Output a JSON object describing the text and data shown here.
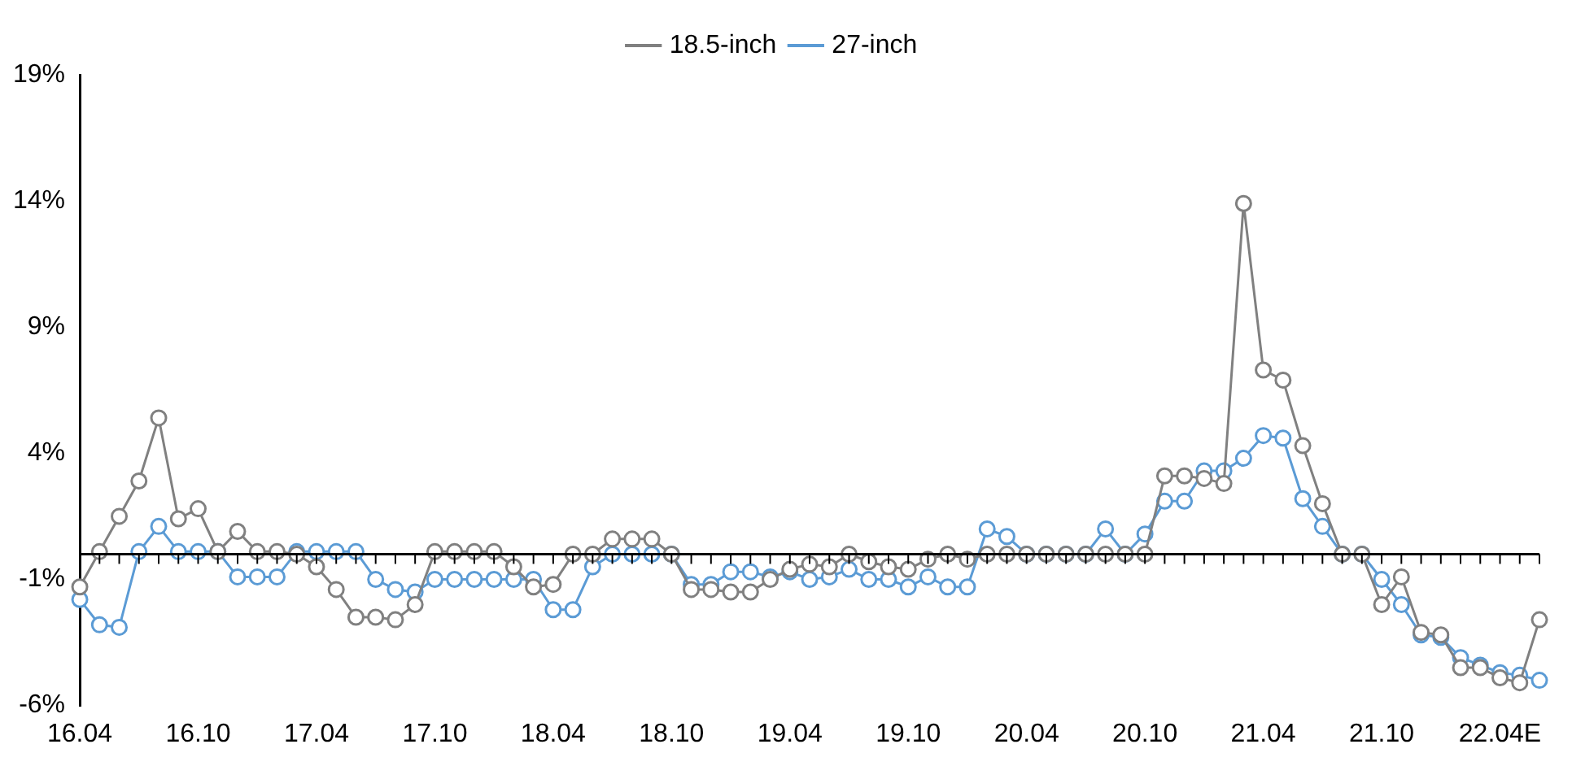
{
  "chart_data": {
    "type": "line",
    "categories": [
      "16.04",
      null,
      null,
      null,
      null,
      null,
      "16.10",
      null,
      null,
      null,
      null,
      null,
      "17.04",
      null,
      null,
      null,
      null,
      null,
      "17.10",
      null,
      null,
      null,
      null,
      null,
      "18.04",
      null,
      null,
      null,
      null,
      null,
      "18.10",
      null,
      null,
      null,
      null,
      null,
      "19.04",
      null,
      null,
      null,
      null,
      null,
      "19.10",
      null,
      null,
      null,
      null,
      null,
      "20.04",
      null,
      null,
      null,
      null,
      null,
      "20.10",
      null,
      null,
      null,
      null,
      null,
      "21.04",
      null,
      null,
      null,
      null,
      null,
      "21.10",
      null,
      null,
      null,
      null,
      null,
      "22.04E",
      null,
      null
    ],
    "series": [
      {
        "name": "18.5-inch",
        "color": "#808080",
        "values": [
          -1.3,
          0.1,
          1.5,
          2.9,
          5.4,
          1.4,
          1.8,
          0.1,
          0.9,
          0.1,
          0.1,
          0.0,
          -0.5,
          -1.4,
          -2.5,
          -2.5,
          -2.6,
          -2.0,
          0.1,
          0.1,
          0.1,
          0.1,
          -0.5,
          -1.3,
          -1.2,
          0.0,
          0.0,
          0.6,
          0.6,
          0.6,
          0.0,
          -1.4,
          -1.4,
          -1.5,
          -1.5,
          -1.0,
          -0.6,
          -0.4,
          -0.5,
          0.0,
          -0.3,
          -0.5,
          -0.6,
          -0.2,
          0.0,
          -0.2,
          0.0,
          0.0,
          0.0,
          0.0,
          0.0,
          0.0,
          0.0,
          0.0,
          0.0,
          3.1,
          3.1,
          3.0,
          2.8,
          13.9,
          7.3,
          6.9,
          4.3,
          2.0,
          0.0,
          0.0,
          -2.0,
          -0.9,
          -3.1,
          -3.2,
          -4.5,
          -4.5,
          -4.9,
          -5.1,
          -2.6
        ]
      },
      {
        "name": "27-inch",
        "color": "#5b9bd5",
        "values": [
          -1.8,
          -2.8,
          -2.9,
          0.1,
          1.1,
          0.1,
          0.1,
          0.1,
          -0.9,
          -0.9,
          -0.9,
          0.1,
          0.1,
          0.1,
          0.1,
          -1.0,
          -1.4,
          -1.5,
          -1.0,
          -1.0,
          -1.0,
          -1.0,
          -1.0,
          -1.0,
          -2.2,
          -2.2,
          -0.5,
          0.0,
          0.0,
          0.0,
          0.0,
          -1.2,
          -1.2,
          -0.7,
          -0.7,
          -0.9,
          -0.7,
          -1.0,
          -0.9,
          -0.6,
          -1.0,
          -1.0,
          -1.3,
          -0.9,
          -1.3,
          -1.3,
          1.0,
          0.7,
          0.0,
          0.0,
          0.0,
          0.0,
          1.0,
          0.0,
          0.8,
          2.1,
          2.1,
          3.3,
          3.3,
          3.8,
          4.7,
          4.6,
          2.2,
          1.1,
          0.0,
          0.0,
          -1.0,
          -2.0,
          -3.2,
          -3.3,
          -4.1,
          -4.4,
          -4.7,
          -4.8,
          -5.0
        ]
      }
    ],
    "ylim": [
      -6,
      19
    ],
    "yticks": [
      {
        "value": -6,
        "label": "-6%"
      },
      {
        "value": -1,
        "label": "-1%"
      },
      {
        "value": 4,
        "label": "4%"
      },
      {
        "value": 9,
        "label": "9%"
      },
      {
        "value": 14,
        "label": "14%"
      },
      {
        "value": 19,
        "label": "19%"
      }
    ],
    "grid": false,
    "legend": "top",
    "marker": "circle",
    "line_style": "solid"
  }
}
